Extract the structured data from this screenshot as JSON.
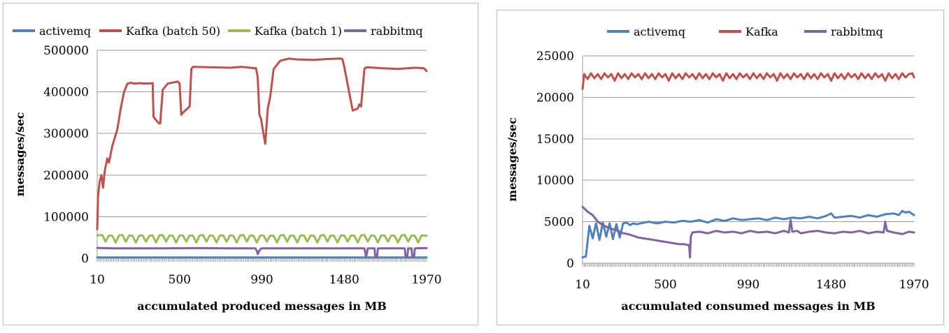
{
  "colors": {
    "activemq": "#4f81bd",
    "kafka": "#c0504d",
    "kafka_batch1": "#9bbb59",
    "rabbitmq": "#8064a2"
  },
  "chart_data": [
    {
      "type": "line",
      "ylabel": "messages/sec",
      "xlabel": "accumulated produced messages in MB",
      "ylim": [
        0,
        500000
      ],
      "yticks": [
        "0",
        "100000",
        "200000",
        "300000",
        "400000",
        "500000"
      ],
      "xlim": [
        10,
        1970
      ],
      "xticks": [
        "10",
        "500",
        "990",
        "1480",
        "1970"
      ],
      "legend_position": "top",
      "grid": true,
      "series": [
        {
          "name": "activemq",
          "color": "#4f81bd",
          "x": [
            10,
            1970
          ],
          "y": [
            2000,
            2000
          ]
        },
        {
          "name": "Kafka (batch 50)",
          "color": "#c0504d",
          "x": [
            10,
            15,
            25,
            35,
            45,
            55,
            60,
            70,
            80,
            90,
            100,
            115,
            130,
            150,
            170,
            190,
            210,
            230,
            260,
            300,
            340,
            345,
            365,
            375,
            385,
            400,
            430,
            480,
            490,
            500,
            510,
            520,
            560,
            570,
            580,
            800,
            870,
            920,
            940,
            955,
            965,
            975,
            985,
            995,
            1010,
            1025,
            1040,
            1060,
            1100,
            1150,
            1200,
            1300,
            1380,
            1460,
            1470,
            1480,
            1530,
            1560,
            1570,
            1580,
            1600,
            1605,
            1620,
            1700,
            1800,
            1900,
            1950,
            1960,
            1970
          ],
          "y": [
            70000,
            150000,
            185000,
            200000,
            170000,
            210000,
            220000,
            240000,
            230000,
            250000,
            270000,
            290000,
            310000,
            360000,
            400000,
            420000,
            422000,
            420000,
            421000,
            420000,
            421000,
            340000,
            330000,
            325000,
            324000,
            405000,
            420000,
            424000,
            425000,
            420000,
            345000,
            350000,
            365000,
            455000,
            460000,
            458000,
            460000,
            458000,
            457000,
            457000,
            435000,
            345000,
            335000,
            310000,
            275000,
            360000,
            390000,
            455000,
            475000,
            480000,
            478000,
            477000,
            479000,
            480000,
            478000,
            460000,
            355000,
            360000,
            370000,
            365000,
            455000,
            458000,
            459000,
            457000,
            455000,
            458000,
            457000,
            455000,
            450000
          ]
        },
        {
          "name": "Kafka (batch 1)",
          "color": "#9bbb59",
          "x": [
            10,
            40,
            60,
            80,
            100,
            120,
            140,
            160,
            180,
            200,
            220,
            240,
            260,
            280,
            300,
            320,
            340,
            360,
            380,
            400,
            420,
            440,
            460,
            480,
            500,
            520,
            540,
            560,
            580,
            600,
            620,
            640,
            660,
            680,
            700,
            720,
            740,
            760,
            780,
            800,
            820,
            840,
            860,
            880,
            900,
            920,
            940,
            960,
            980,
            1000,
            1020,
            1040,
            1060,
            1080,
            1100,
            1120,
            1140,
            1160,
            1180,
            1200,
            1220,
            1240,
            1260,
            1280,
            1300,
            1320,
            1340,
            1360,
            1380,
            1400,
            1420,
            1440,
            1460,
            1480,
            1500,
            1520,
            1540,
            1560,
            1580,
            1600,
            1620,
            1640,
            1660,
            1680,
            1700,
            1720,
            1740,
            1760,
            1780,
            1800,
            1820,
            1840,
            1860,
            1880,
            1900,
            1920,
            1940,
            1970
          ],
          "y": [
            55000,
            56000,
            40000,
            55000,
            54000,
            38000,
            55000,
            56000,
            40000,
            55000,
            54000,
            38000,
            55000,
            55000,
            40000,
            54000,
            55000,
            38000,
            55000,
            56000,
            40000,
            55000,
            54000,
            38000,
            55000,
            55000,
            40000,
            55000,
            54000,
            38000,
            55000,
            56000,
            40000,
            55000,
            54000,
            38000,
            55000,
            55000,
            40000,
            55000,
            54000,
            38000,
            55000,
            56000,
            40000,
            55000,
            54000,
            38000,
            55000,
            55000,
            40000,
            55000,
            54000,
            38000,
            55000,
            56000,
            40000,
            55000,
            54000,
            38000,
            55000,
            55000,
            40000,
            55000,
            54000,
            38000,
            55000,
            56000,
            40000,
            55000,
            54000,
            38000,
            55000,
            55000,
            40000,
            55000,
            54000,
            38000,
            55000,
            56000,
            40000,
            55000,
            54000,
            38000,
            55000,
            55000,
            40000,
            55000,
            54000,
            38000,
            55000,
            56000,
            40000,
            55000,
            54000,
            38000,
            55000,
            54000
          ]
        },
        {
          "name": "rabbitmq",
          "color": "#8064a2",
          "x": [
            10,
            100,
            200,
            400,
            600,
            800,
            950,
            960,
            965,
            975,
            985,
            1000,
            1200,
            1400,
            1560,
            1580,
            1600,
            1610,
            1620,
            1660,
            1665,
            1675,
            1680,
            1700,
            1800,
            1840,
            1845,
            1855,
            1860,
            1880,
            1885,
            1895,
            1900,
            1950,
            1970
          ],
          "y": [
            25000,
            24000,
            24000,
            24000,
            24500,
            24000,
            24000,
            18000,
            10000,
            18000,
            24000,
            24000,
            24000,
            24000,
            24000,
            24000,
            24000,
            2000,
            24000,
            24000,
            2000,
            2000,
            24000,
            24000,
            24000,
            24000,
            2000,
            2000,
            24000,
            24000,
            2000,
            2000,
            24000,
            24500,
            24500
          ]
        }
      ]
    },
    {
      "type": "line",
      "ylabel": "messages/sec",
      "xlabel": "accumulated consumed messages in MB",
      "ylim": [
        0,
        25000
      ],
      "yticks": [
        "0",
        "5000",
        "10000",
        "15000",
        "20000",
        "25000"
      ],
      "xlim": [
        10,
        1970
      ],
      "xticks": [
        "10",
        "500",
        "990",
        "1480",
        "1970"
      ],
      "legend_position": "top",
      "grid": true,
      "series": [
        {
          "name": "activemq",
          "color": "#4f81bd",
          "x": [
            10,
            30,
            50,
            70,
            90,
            110,
            130,
            150,
            170,
            190,
            210,
            230,
            250,
            270,
            290,
            310,
            330,
            400,
            450,
            500,
            550,
            600,
            650,
            700,
            750,
            800,
            850,
            900,
            950,
            1000,
            1050,
            1100,
            1150,
            1200,
            1250,
            1300,
            1350,
            1400,
            1450,
            1480,
            1500,
            1550,
            1600,
            1650,
            1700,
            1750,
            1800,
            1850,
            1880,
            1900,
            1920,
            1940,
            1970
          ],
          "y": [
            700,
            800,
            4500,
            3000,
            4800,
            2800,
            4900,
            3200,
            4800,
            2900,
            4700,
            3100,
            4800,
            4900,
            4600,
            4800,
            4700,
            5000,
            4800,
            5000,
            4900,
            5100,
            5000,
            5200,
            4900,
            5300,
            5100,
            5400,
            5200,
            5300,
            5400,
            5200,
            5500,
            5300,
            5500,
            5400,
            5600,
            5400,
            5700,
            6000,
            5500,
            5600,
            5700,
            5500,
            5800,
            5600,
            5900,
            6000,
            5800,
            6300,
            6100,
            6200,
            5800
          ]
        },
        {
          "name": "Kafka",
          "color": "#c0504d",
          "x": [
            10,
            20,
            40,
            60,
            80,
            100,
            120,
            140,
            160,
            180,
            200,
            220,
            240,
            260,
            280,
            300,
            320,
            340,
            360,
            380,
            400,
            420,
            440,
            460,
            480,
            500,
            520,
            540,
            560,
            580,
            600,
            620,
            640,
            660,
            680,
            700,
            720,
            740,
            760,
            780,
            800,
            820,
            840,
            860,
            880,
            900,
            920,
            940,
            960,
            980,
            1000,
            1020,
            1040,
            1060,
            1080,
            1100,
            1120,
            1140,
            1160,
            1180,
            1200,
            1220,
            1240,
            1260,
            1280,
            1300,
            1320,
            1340,
            1360,
            1380,
            1400,
            1420,
            1440,
            1460,
            1480,
            1500,
            1520,
            1540,
            1560,
            1580,
            1600,
            1620,
            1640,
            1660,
            1680,
            1700,
            1720,
            1740,
            1760,
            1780,
            1800,
            1820,
            1840,
            1860,
            1880,
            1900,
            1920,
            1940,
            1960,
            1970
          ],
          "y": [
            21000,
            22800,
            22200,
            22900,
            22300,
            22800,
            22200,
            22900,
            22400,
            22800,
            22000,
            22900,
            22300,
            22800,
            22200,
            22900,
            22400,
            22800,
            22200,
            22900,
            22300,
            22800,
            22200,
            22900,
            22400,
            22800,
            22000,
            22900,
            22300,
            22800,
            22200,
            22900,
            22400,
            22800,
            22200,
            22900,
            22300,
            22800,
            22200,
            22900,
            22400,
            22800,
            22000,
            22900,
            22300,
            22800,
            22200,
            22900,
            22400,
            22800,
            22200,
            22900,
            22300,
            22800,
            22200,
            22900,
            22400,
            22800,
            22000,
            22900,
            22300,
            22800,
            22200,
            22900,
            22400,
            22800,
            22200,
            22900,
            22300,
            22800,
            22200,
            22900,
            22400,
            22800,
            22000,
            22900,
            22300,
            22800,
            22200,
            22900,
            22400,
            22800,
            22200,
            22900,
            22300,
            22800,
            22200,
            22900,
            22400,
            22800,
            22000,
            22900,
            22300,
            22800,
            22200,
            22900,
            22400,
            22800,
            22900,
            22400
          ]
        },
        {
          "name": "rabbitmq",
          "color": "#8064a2",
          "x": [
            10,
            40,
            70,
            100,
            130,
            160,
            190,
            220,
            250,
            280,
            310,
            340,
            370,
            400,
            430,
            460,
            490,
            520,
            550,
            580,
            610,
            630,
            640,
            645,
            650,
            660,
            700,
            750,
            800,
            850,
            900,
            950,
            1000,
            1050,
            1100,
            1150,
            1200,
            1230,
            1240,
            1250,
            1280,
            1300,
            1350,
            1400,
            1450,
            1500,
            1550,
            1600,
            1650,
            1700,
            1750,
            1790,
            1800,
            1810,
            1850,
            1900,
            1940,
            1970
          ],
          "y": [
            6800,
            6200,
            5800,
            5000,
            4600,
            4300,
            4100,
            3900,
            3600,
            3500,
            3300,
            3100,
            3000,
            2900,
            2800,
            2700,
            2600,
            2500,
            2400,
            2300,
            2300,
            2200,
            2200,
            700,
            3200,
            3700,
            3800,
            3600,
            3900,
            3700,
            3800,
            3600,
            3900,
            3700,
            3800,
            3600,
            3900,
            3700,
            5200,
            3800,
            3900,
            3600,
            3800,
            3900,
            3700,
            3600,
            3800,
            3700,
            3900,
            3600,
            3800,
            3700,
            5000,
            3900,
            3700,
            3500,
            3800,
            3700
          ]
        }
      ]
    }
  ]
}
